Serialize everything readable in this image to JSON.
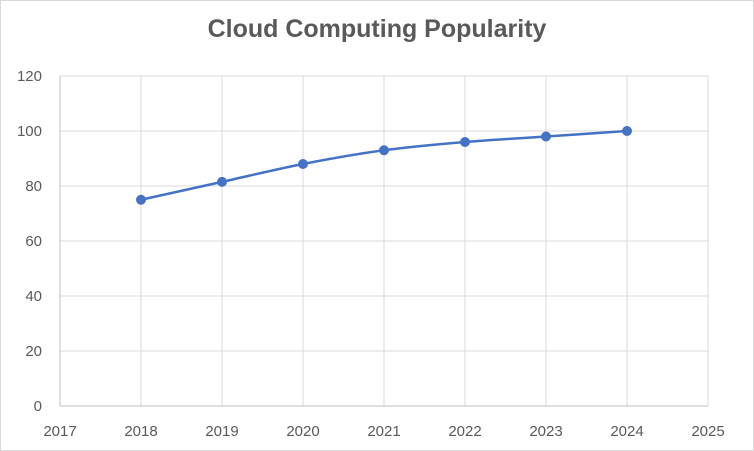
{
  "chart_data": {
    "type": "line",
    "title": "Cloud Computing Popularity",
    "xlabel": "",
    "ylabel": "",
    "x": [
      2018,
      2019,
      2020,
      2021,
      2022,
      2023,
      2024
    ],
    "series": [
      {
        "values": [
          75,
          81.5,
          88,
          93,
          96,
          98,
          100
        ],
        "color": "#4472c4"
      }
    ],
    "xlim": [
      2017,
      2025
    ],
    "ylim": [
      0,
      120
    ],
    "xticks": [
      2017,
      2018,
      2019,
      2020,
      2021,
      2022,
      2023,
      2024,
      2025
    ],
    "yticks": [
      0,
      20,
      40,
      60,
      80,
      100,
      120
    ],
    "grid": true,
    "legend": "none"
  }
}
